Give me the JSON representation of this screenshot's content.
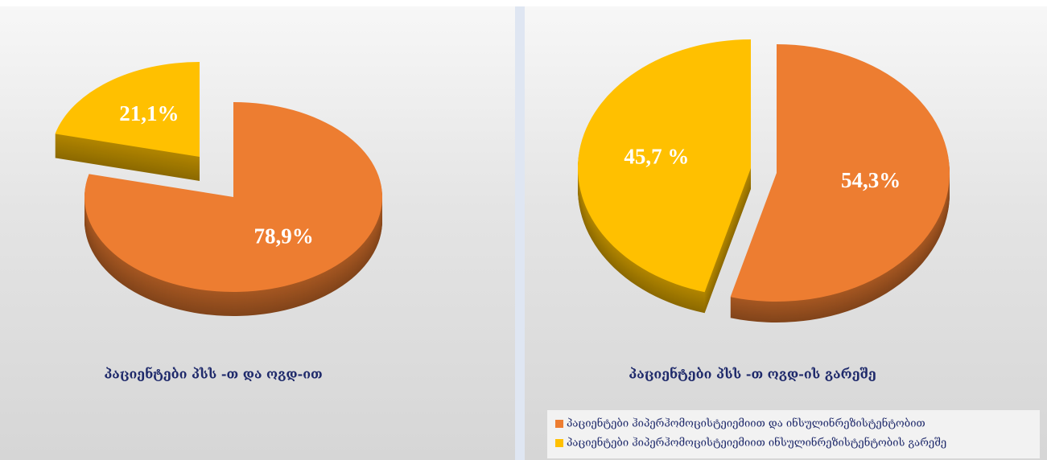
{
  "chart_data": [
    {
      "type": "pie",
      "title": "პაციენტები პსს -თ და ოგდ-ით",
      "values": [
        78.9,
        21.1
      ],
      "value_labels": [
        "78,9%",
        "21,1%"
      ],
      "colors": [
        "#ed7d31",
        "#ffc000"
      ],
      "explode": [
        false,
        true
      ]
    },
    {
      "type": "pie",
      "title": "პაციენტები პსს -თ  ოგდ-ის გარეშე",
      "categories": [
        "პაციენტები ჰიპერჰომოცისტეიემიით და ინსულინრეზისტენტობით",
        "პაციენტები ჰიპერჰომოცისტეიემიით  ინსულინრეზისტენტობის გარეშე"
      ],
      "values": [
        54.3,
        45.7
      ],
      "value_labels": [
        "54,3%",
        "45,7 %"
      ],
      "colors": [
        "#ed7d31",
        "#ffc000"
      ],
      "explode": [
        false,
        true
      ],
      "legend": "bottom-right"
    }
  ]
}
